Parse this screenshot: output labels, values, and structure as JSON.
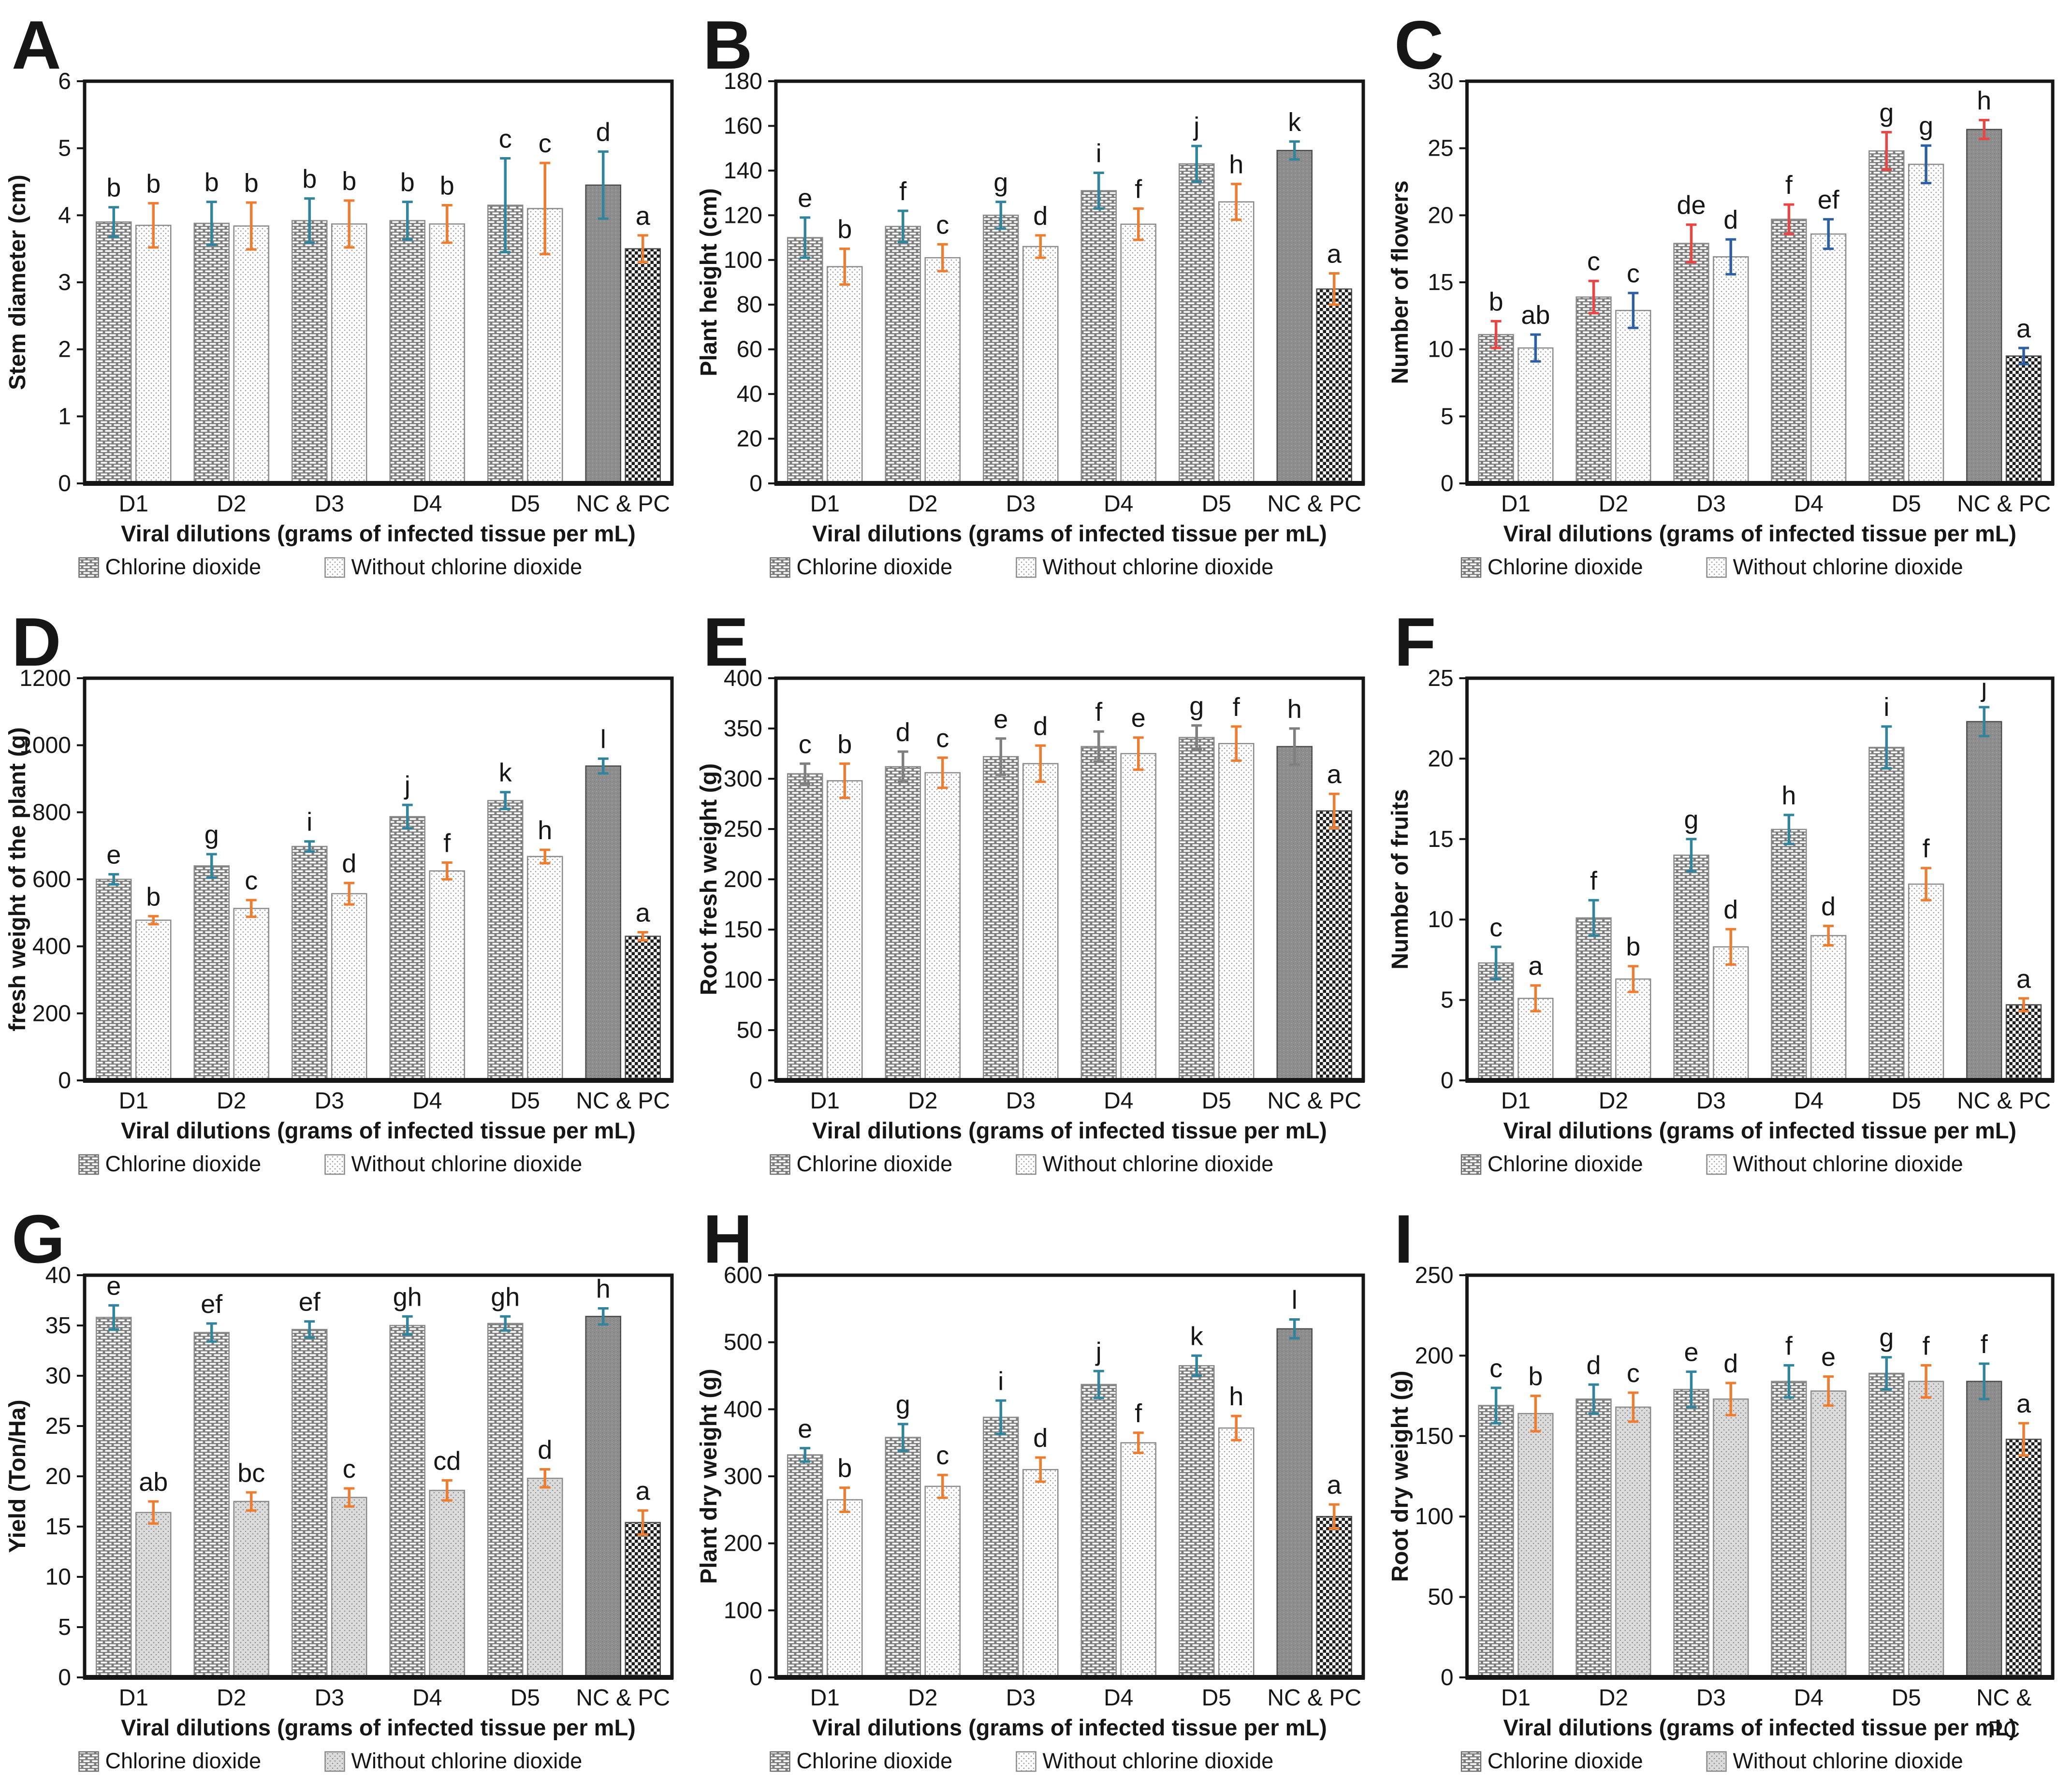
{
  "figure": {
    "x_axis_title": "Viral dilutions (grams of infected tissue per mL)",
    "legend": [
      "Chlorine dioxide",
      "Without chlorine dioxide"
    ],
    "categories": [
      "D1",
      "D2",
      "D3",
      "D4",
      "D5",
      "NC & PC"
    ],
    "colors": {
      "err_teal": "#31849b",
      "err_orange": "#ed7d31",
      "err_red": "#e84545",
      "err_blue": "#2e5fa3",
      "err_gray": "#7f7f7f",
      "frame": "#161616"
    }
  },
  "chart_data": [
    {
      "type": "bar",
      "panel": "A",
      "ylabel": "Stem diameter (cm)",
      "ylim": [
        0,
        6
      ],
      "ystep": 1,
      "categories": [
        "D1",
        "D2",
        "D3",
        "D4",
        "D5",
        "NC & PC"
      ],
      "xlabel": "Viral dilutions (grams of infected tissue per mL)",
      "series": [
        {
          "name": "Chlorine dioxide",
          "err_color": "#31849b",
          "values": [
            3.9,
            3.88,
            3.92,
            3.92,
            4.15,
            4.45
          ],
          "errors": [
            0.22,
            0.32,
            0.33,
            0.28,
            0.7,
            0.5
          ],
          "letters": [
            "b",
            "b",
            "b",
            "b",
            "c",
            "d"
          ]
        },
        {
          "name": "Without chlorine dioxide",
          "err_color": "#ed7d31",
          "values": [
            3.85,
            3.84,
            3.87,
            3.87,
            4.1,
            3.5
          ],
          "errors": [
            0.33,
            0.35,
            0.35,
            0.28,
            0.68,
            0.2
          ],
          "letters": [
            "b",
            "b",
            "b",
            "b",
            "c",
            "a"
          ]
        }
      ]
    },
    {
      "type": "bar",
      "panel": "B",
      "ylabel": "Plant height (cm)",
      "ylim": [
        0,
        180
      ],
      "ystep": 20,
      "categories": [
        "D1",
        "D2",
        "D3",
        "D4",
        "D5",
        "NC & PC"
      ],
      "xlabel": "Viral dilutions (grams of infected tissue per mL)",
      "series": [
        {
          "name": "Chlorine dioxide",
          "err_color": "#31849b",
          "values": [
            110,
            115,
            120,
            131,
            143,
            149
          ],
          "errors": [
            9,
            7,
            6,
            8,
            8,
            4
          ],
          "letters": [
            "e",
            "f",
            "g",
            "i",
            "j",
            "k"
          ]
        },
        {
          "name": "Without chlorine dioxide",
          "err_color": "#ed7d31",
          "values": [
            97,
            101,
            106,
            116,
            126,
            87
          ],
          "errors": [
            8,
            6,
            5,
            7,
            8,
            7
          ],
          "letters": [
            "b",
            "c",
            "d",
            "f",
            "h",
            "a"
          ]
        }
      ]
    },
    {
      "type": "bar",
      "panel": "C",
      "ylabel": "Number of flowers",
      "ylim": [
        0,
        30
      ],
      "ystep": 5,
      "categories": [
        "D1",
        "D2",
        "D3",
        "D4",
        "D5",
        "NC & PC"
      ],
      "xlabel": "Viral dilutions (grams of infected tissue per mL)",
      "series": [
        {
          "name": "Chlorine dioxide",
          "err_color": "#e84545",
          "values": [
            11.1,
            13.9,
            17.9,
            19.7,
            24.8,
            26.4
          ],
          "errors": [
            1.0,
            1.2,
            1.4,
            1.1,
            1.4,
            0.7
          ],
          "letters": [
            "b",
            "c",
            "de",
            "f",
            "g",
            "h"
          ]
        },
        {
          "name": "Without chlorine dioxide",
          "err_color": "#2e5fa3",
          "values": [
            10.1,
            12.9,
            16.9,
            18.6,
            23.8,
            9.5
          ],
          "errors": [
            1.0,
            1.3,
            1.3,
            1.1,
            1.4,
            0.6
          ],
          "letters": [
            "ab",
            "c",
            "d",
            "ef",
            "g",
            "a"
          ]
        }
      ]
    },
    {
      "type": "bar",
      "panel": "D",
      "ylabel": "fresh weight of the plant (g)",
      "ylim": [
        0,
        1200
      ],
      "ystep": 200,
      "categories": [
        "D1",
        "D2",
        "D3",
        "D4",
        "D5",
        "NC & PC"
      ],
      "xlabel": "Viral dilutions (grams of infected tissue per mL)",
      "series": [
        {
          "name": "Chlorine dioxide",
          "err_color": "#31849b",
          "values": [
            600,
            640,
            698,
            787,
            835,
            938
          ],
          "errors": [
            15,
            35,
            15,
            35,
            25,
            22
          ],
          "letters": [
            "e",
            "g",
            "i",
            "j",
            "k",
            "l"
          ]
        },
        {
          "name": "Without chlorine dioxide",
          "err_color": "#ed7d31",
          "values": [
            478,
            513,
            557,
            625,
            668,
            430
          ],
          "errors": [
            12,
            25,
            32,
            25,
            20,
            12
          ],
          "letters": [
            "b",
            "c",
            "d",
            "f",
            "h",
            "a"
          ]
        }
      ]
    },
    {
      "type": "bar",
      "panel": "E",
      "ylabel": "Root fresh weight (g)",
      "ylim": [
        0,
        400
      ],
      "ystep": 50,
      "categories": [
        "D1",
        "D2",
        "D3",
        "D4",
        "D5",
        "NC & PC"
      ],
      "xlabel": "Viral dilutions (grams of infected tissue per mL)",
      "series": [
        {
          "name": "Chlorine dioxide",
          "err_color": "#7f7f7f",
          "values": [
            305,
            312,
            322,
            332,
            341,
            332
          ],
          "errors": [
            10,
            15,
            18,
            15,
            12,
            18
          ],
          "letters": [
            "c",
            "d",
            "e",
            "f",
            "g",
            "h"
          ]
        },
        {
          "name": "Without chlorine dioxide",
          "err_color": "#ed7d31",
          "values": [
            298,
            306,
            315,
            325,
            335,
            268
          ],
          "errors": [
            17,
            15,
            18,
            16,
            17,
            17
          ],
          "letters": [
            "b",
            "c",
            "d",
            "e",
            "f",
            "a"
          ]
        }
      ]
    },
    {
      "type": "bar",
      "panel": "F",
      "ylabel": "Number of fruits",
      "ylim": [
        0,
        25
      ],
      "ystep": 5,
      "categories": [
        "D1",
        "D2",
        "D3",
        "D4",
        "D5",
        "NC & PC"
      ],
      "xlabel": "Viral dilutions (grams of infected tissue per mL)",
      "series": [
        {
          "name": "Chlorine dioxide",
          "err_color": "#31849b",
          "values": [
            7.3,
            10.1,
            14.0,
            15.6,
            20.7,
            22.3
          ],
          "errors": [
            1.0,
            1.1,
            1.0,
            0.9,
            1.3,
            0.9
          ],
          "letters": [
            "c",
            "f",
            "g",
            "h",
            "i",
            "j"
          ]
        },
        {
          "name": "Without chlorine dioxide",
          "err_color": "#ed7d31",
          "values": [
            5.1,
            6.3,
            8.3,
            9.0,
            12.2,
            4.7
          ],
          "errors": [
            0.8,
            0.8,
            1.1,
            0.6,
            1.0,
            0.4
          ],
          "letters": [
            "a",
            "b",
            "d",
            "d",
            "f",
            "a"
          ]
        }
      ]
    },
    {
      "type": "bar",
      "panel": "G",
      "ylabel": "Yield (Ton/Ha)",
      "ylim": [
        0,
        40
      ],
      "ystep": 5,
      "untreated_gray": true,
      "categories": [
        "D1",
        "D2",
        "D3",
        "D4",
        "D5",
        "NC & PC"
      ],
      "xlabel": "Viral dilutions (grams of infected tissue per mL)",
      "series": [
        {
          "name": "Chlorine dioxide",
          "err_color": "#31849b",
          "values": [
            35.8,
            34.3,
            34.6,
            35.0,
            35.2,
            35.9
          ],
          "errors": [
            1.2,
            0.9,
            0.8,
            0.9,
            0.7,
            0.8
          ],
          "letters": [
            "e",
            "ef",
            "ef",
            "gh",
            "gh",
            "h"
          ]
        },
        {
          "name": "Without chlorine dioxide",
          "err_color": "#ed7d31",
          "values": [
            16.4,
            17.5,
            17.9,
            18.6,
            19.8,
            15.4
          ],
          "errors": [
            1.1,
            0.9,
            0.9,
            1.0,
            0.9,
            1.2
          ],
          "letters": [
            "ab",
            "bc",
            "c",
            "cd",
            "d",
            "a"
          ]
        }
      ]
    },
    {
      "type": "bar",
      "panel": "H",
      "ylabel": "Plant dry weight (g)",
      "ylim": [
        0,
        600
      ],
      "ystep": 100,
      "categories": [
        "D1",
        "D2",
        "D3",
        "D4",
        "D5",
        "NC & PC"
      ],
      "xlabel": "Viral dilutions (grams of infected tissue per mL)",
      "series": [
        {
          "name": "Chlorine dioxide",
          "err_color": "#31849b",
          "values": [
            332,
            358,
            388,
            437,
            465,
            520
          ],
          "errors": [
            10,
            20,
            25,
            20,
            15,
            14
          ],
          "letters": [
            "e",
            "g",
            "i",
            "j",
            "k",
            "l"
          ]
        },
        {
          "name": "Without chlorine dioxide",
          "err_color": "#ed7d31",
          "values": [
            265,
            285,
            310,
            350,
            372,
            240
          ],
          "errors": [
            18,
            17,
            18,
            15,
            18,
            18
          ],
          "letters": [
            "b",
            "c",
            "d",
            "f",
            "h",
            "a"
          ]
        }
      ]
    },
    {
      "type": "bar",
      "panel": "I",
      "ylabel": "Root dry weight (g)",
      "ylim": [
        0,
        250
      ],
      "ystep": 50,
      "untreated_gray": true,
      "categories": [
        "D1",
        "D2",
        "D3",
        "D4",
        "D5",
        "NC & PC"
      ],
      "last_category_lines": [
        "NC &",
        "PC"
      ],
      "xlabel": "Viral dilutions (grams of infected tissue per mL)",
      "series": [
        {
          "name": "Chlorine dioxide",
          "err_color": "#31849b",
          "values": [
            169,
            173,
            179,
            184,
            189,
            184
          ],
          "errors": [
            11,
            9,
            11,
            10,
            10,
            11
          ],
          "letters": [
            "c",
            "d",
            "e",
            "f",
            "g",
            "f"
          ]
        },
        {
          "name": "Without chlorine dioxide",
          "err_color": "#ed7d31",
          "values": [
            164,
            168,
            173,
            178,
            184,
            148
          ],
          "errors": [
            11,
            9,
            10,
            9,
            10,
            10
          ],
          "letters": [
            "b",
            "c",
            "d",
            "e",
            "f",
            "a"
          ]
        }
      ]
    }
  ]
}
